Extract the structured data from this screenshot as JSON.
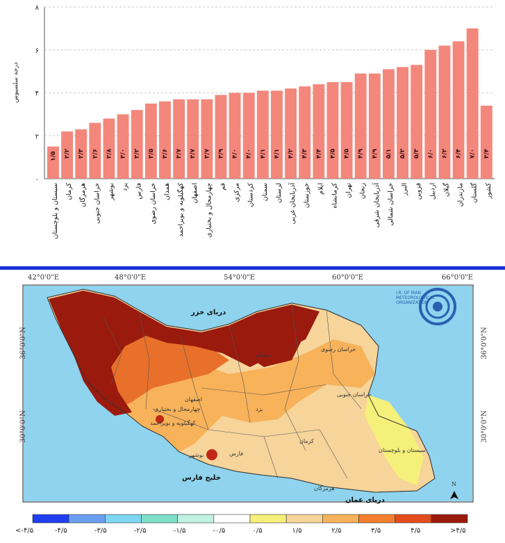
{
  "chart_data": {
    "type": "bar",
    "ylabel": "درجه سلسیوس",
    "ylim": [
      0,
      8
    ],
    "yticks": [
      "۰",
      "۲",
      "۴",
      "۶",
      "۸"
    ],
    "grid": true,
    "bar_color": "#f4877c",
    "categories": [
      "سیستان و بلوچستان",
      "کرمان",
      "هرمزگان",
      "خراسان جنوبی",
      "بوشهر",
      "یزد",
      "فارس",
      "خراسان رضوی",
      "همدان",
      "کهگیلویه و بویراحمد",
      "اصفهان",
      "چهارمحال و بختیاری",
      "قم",
      "مرکزی",
      "کردستان",
      "سمنان",
      "لرستان",
      "آذربایجان غربی",
      "خوزستان",
      "ایلام",
      "کرمانشاه",
      "تهران",
      "زنجان",
      "آذربایجان شرقی",
      "خراسان شمالی",
      "البرز",
      "قزوین",
      "اردبیل",
      "گیلان",
      "مازندران",
      "گلستان",
      "کشور"
    ],
    "values": [
      1.5,
      2.2,
      2.3,
      2.6,
      2.8,
      3.0,
      3.2,
      3.5,
      3.6,
      3.7,
      3.7,
      3.7,
      3.9,
      4.0,
      4.0,
      4.1,
      4.1,
      4.2,
      4.3,
      4.4,
      4.5,
      4.5,
      4.9,
      4.9,
      5.1,
      5.2,
      5.3,
      6.0,
      6.2,
      6.4,
      7.0,
      3.4
    ],
    "value_labels": [
      "۱/۵",
      "۲/۲",
      "۲/۳",
      "۲/۶",
      "۲/۸",
      "۳/۰",
      "۳/۲",
      "۳/۵",
      "۳/۶",
      "۳/۷",
      "۳/۷",
      "۳/۷",
      "۳/۹",
      "۴/۰",
      "۴/۰",
      "۴/۱",
      "۴/۱",
      "۴/۲",
      "۴/۳",
      "۴/۴",
      "۴/۵",
      "۴/۵",
      "۴/۹",
      "۴/۹",
      "۵/۱",
      "۵/۲",
      "۵/۳",
      "۶/۰",
      "۶/۲",
      "۶/۴",
      "۷/۰",
      "۳/۴"
    ]
  },
  "map": {
    "top_longitudes": [
      "42°0'0\"E",
      "48°0'0\"E",
      "54°0'0\"E",
      "60°0'0\"E",
      "66°0'0\"E"
    ],
    "bottom_longitudes": [
      "42°0'0\"E",
      "48°0'0\"E",
      "54°0'0\"E",
      "60°0'0\"E",
      "66°0'0\"E"
    ],
    "latitudes": [
      "36°0'0\"N",
      "30°0'0\"N"
    ],
    "caspian_label": "دریای خزر",
    "gulf_label": "خلیج فارس",
    "oman_label": "دریای عمان",
    "province_labels": [
      "خراسان رضوی",
      "خراسان جنوبی",
      "یزد",
      "کرمان",
      "اصفهان",
      "فارس",
      "بوشهر",
      "سیستان و بلوچستان",
      "چهارمحال و بختیاری",
      "کهگیلویه و بویراحمد",
      "سمنان",
      "هرمزگان"
    ],
    "north_arrow": "N",
    "logo_text": "I.R. OF IRAN METEOROLOGICAL ORGANIZATION",
    "logo_color": "#2b5fb0",
    "sea_color": "#8fd3ee",
    "legend_colors": [
      "#1f3ff0",
      "#6a9ef3",
      "#7fd6f2",
      "#7fe0c8",
      "#bff2e0",
      "#ffffff",
      "#f5f07a",
      "#f6d49a",
      "#f7b25a",
      "#f57f2e",
      "#e44d1c",
      "#9b1a0e"
    ],
    "legend_labels": [
      "<-۴/۵",
      "-۴/۵",
      "-۳/۵",
      "-۲/۵",
      "-۱/۵",
      "-۰/۵",
      "۰/۵",
      "۱/۵",
      "۲/۵",
      "۳/۵",
      "۴/۵",
      ">۴/۵"
    ]
  }
}
